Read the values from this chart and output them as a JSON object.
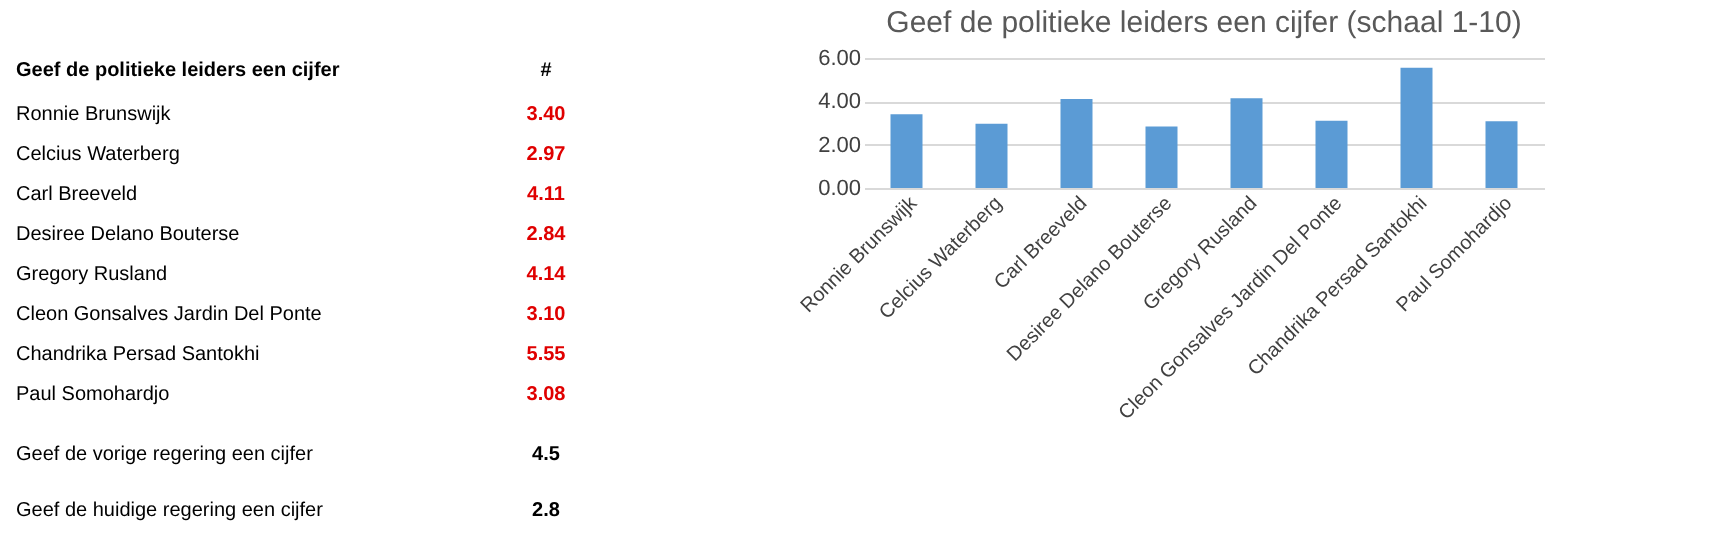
{
  "chart_data": [
    {
      "type": "other",
      "title": "Geef de politieke leiders een cijfer",
      "categories": [
        "Ronnie Brunswijk",
        "Celcius Waterberg",
        "Carl Breeveld",
        "Desiree Delano Bouterse",
        "Gregory Rusland",
        "Cleon Gonsalves Jardin Del Ponte",
        "Chandrika Persad Santokhi",
        "Paul Somohardjo"
      ],
      "values": [
        3.4,
        2.97,
        4.11,
        2.84,
        4.14,
        3.1,
        5.55,
        3.08
      ],
      "value_labels": [
        "3.40",
        "2.97",
        "4.11",
        "2.84",
        "4.14",
        "3.10",
        "5.55",
        "3.08"
      ],
      "annotations": [
        "#",
        "Geef de vorige regering een cijfer",
        "4.5",
        "Geef de huidige regering een cijfer",
        "2.8"
      ]
    },
    {
      "type": "bar",
      "title": "Geef de politieke leiders een cijfer (schaal 1-10)",
      "categories": [
        "Ronnie Brunswijk",
        "Celcius Waterberg",
        "Carl Breeveld",
        "Desiree Delano Bouterse",
        "Gregory Rusland",
        "Cleon Gonsalves Jardin Del Ponte",
        "Chandrika Persad Santokhi",
        "Paul Somohardjo"
      ],
      "values": [
        3.4,
        2.97,
        4.11,
        2.84,
        4.14,
        3.1,
        5.55,
        3.08
      ],
      "color": "#5b9bd5",
      "ylim": [
        0,
        6
      ],
      "yticks": [
        {
          "value": 0,
          "label": "0.00"
        },
        {
          "value": 2,
          "label": "2.00"
        },
        {
          "value": 4,
          "label": "4.00"
        },
        {
          "value": 6,
          "label": "6.00"
        }
      ],
      "grid": "y"
    }
  ]
}
